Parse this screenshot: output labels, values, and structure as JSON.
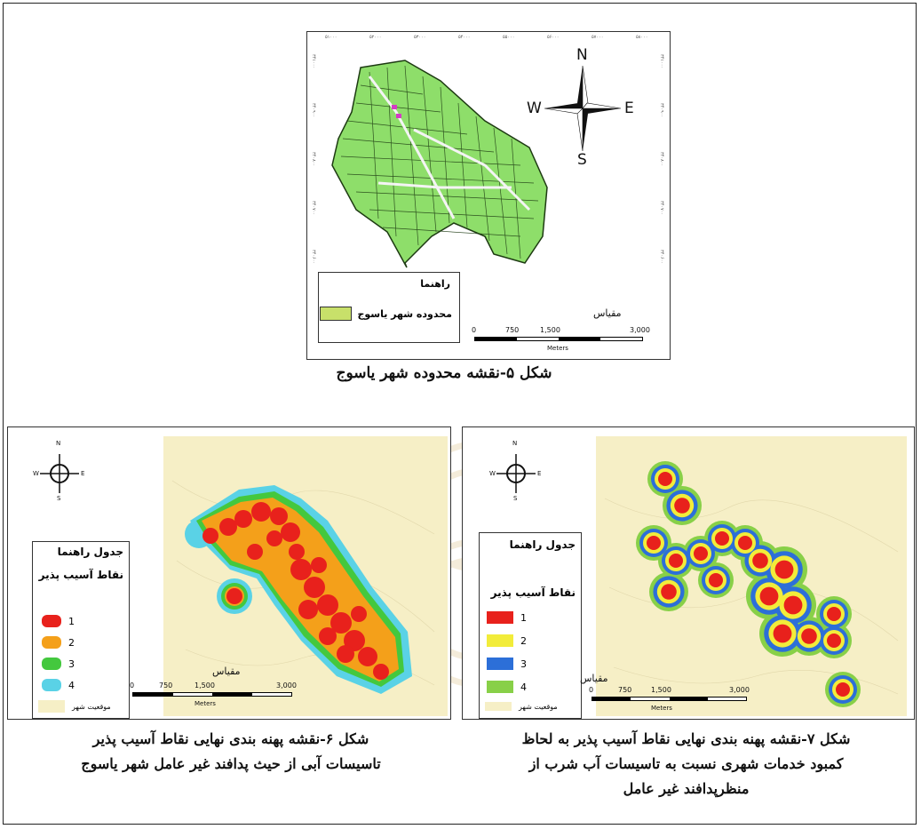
{
  "colors": {
    "city_fill": "#8ede6a",
    "base_fill": "#f6efc6",
    "class1": "#e8211c",
    "class2": "#f4a01a",
    "class3": "#44c83e",
    "class4": "#5ad2e6",
    "fig7_class2": "#f2ec3a",
    "fig7_class3": "#2c6fd8",
    "fig7_class4": "#88d048",
    "frame": "#222222"
  },
  "top_map": {
    "title_ticks": [
      "۵۱۰۰۰",
      "۵۲۰۰۰",
      "۵۳۰۰۰",
      "۵۴۰۰۰",
      "۵۵۰۰۰",
      "۵۶۰۰۰",
      "۵۷۰۰۰",
      "۵۸۰۰۰"
    ],
    "side_ticks": [
      "۳۴۱۰۰۰",
      "۳۴۰۹۰۰",
      "۳۴۰۸۰۰",
      "۳۴۰۷۰۰",
      "۳۴۰۶۰۰",
      "۳۴۰۵۰۰"
    ],
    "compass": {
      "n": "N",
      "s": "S",
      "e": "E",
      "w": "W"
    },
    "legend_title": "راهنما",
    "legend_item": "محدوده شهر یاسوج",
    "scale_label": "مقیاس",
    "scale_ticks": [
      "0",
      "750",
      "1,500",
      "3,000"
    ],
    "scale_unit": "Meters",
    "caption": "شکل ۵-نقشه محدوده شهر یاسوج"
  },
  "fig6": {
    "legend_title": "جدول راهنما",
    "legend_subtitle": "نقاط آسیب پذیر",
    "classes": [
      "1",
      "2",
      "3",
      "4"
    ],
    "base_label": "موقعیت شهر",
    "compass": {
      "n": "N",
      "s": "S",
      "e": "E",
      "w": "W"
    },
    "scale_label": "مقیاس",
    "scale_ticks": [
      "0",
      "750",
      "1,500",
      "3,000"
    ],
    "scale_unit": "Meters",
    "caption_line1": "شکل ۶-نقشه پهنه بندی نهایی نقاط آسیب پذیر",
    "caption_line2": "تاسیسات آبی از حیث پدافند غیر عامل شهر یاسوج"
  },
  "fig7": {
    "legend_title": "جدول راهنما",
    "legend_subtitle": "نقاط آسیب پذیر",
    "classes": [
      "1",
      "2",
      "3",
      "4"
    ],
    "base_label": "موقعیت شهر",
    "compass": {
      "n": "N",
      "s": "S",
      "e": "E",
      "w": "W"
    },
    "scale_label": "مقیاس",
    "scale_ticks": [
      "0",
      "750",
      "1,500",
      "3,000"
    ],
    "scale_unit": "Meters",
    "caption_line1": "شکل ۷-نقشه پهنه بندی نهایی نقاط آسیب پذیر به لحاظ",
    "caption_line2": "کمبود خدمات شهری نسبت به تاسیسات آب شرب از",
    "caption_line3": "منظرپدافند غیر عامل"
  }
}
